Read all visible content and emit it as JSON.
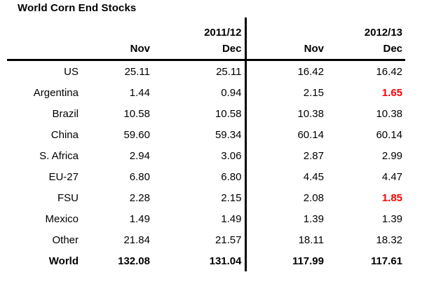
{
  "title": "World Corn End Stocks",
  "highlight_color": "#ff0000",
  "chart_data": {
    "type": "table",
    "title": "World Corn End Stocks",
    "col_groups": [
      {
        "label": "2011/12",
        "cols": [
          "Nov",
          "Dec"
        ]
      },
      {
        "label": "2012/13",
        "cols": [
          "Nov",
          "Dec"
        ]
      }
    ],
    "rows": [
      {
        "label": "US",
        "values": [
          "25.11",
          "25.11",
          "16.42",
          "16.42"
        ]
      },
      {
        "label": "Argentina",
        "values": [
          "1.44",
          "0.94",
          "2.15",
          "1.65"
        ],
        "red_cols": [
          3
        ]
      },
      {
        "label": "Brazil",
        "values": [
          "10.58",
          "10.58",
          "10.38",
          "10.38"
        ]
      },
      {
        "label": "China",
        "values": [
          "59.60",
          "59.34",
          "60.14",
          "60.14"
        ]
      },
      {
        "label": "S. Africa",
        "values": [
          "2.94",
          "3.06",
          "2.87",
          "2.99"
        ]
      },
      {
        "label": "EU-27",
        "values": [
          "6.80",
          "6.80",
          "4.45",
          "4.47"
        ]
      },
      {
        "label": "FSU",
        "values": [
          "2.28",
          "2.15",
          "2.08",
          "1.85"
        ],
        "red_cols": [
          3
        ]
      },
      {
        "label": "Mexico",
        "values": [
          "1.49",
          "1.49",
          "1.39",
          "1.39"
        ]
      },
      {
        "label": "Other",
        "values": [
          "21.84",
          "21.57",
          "18.11",
          "18.32"
        ]
      },
      {
        "label": "World",
        "values": [
          "132.08",
          "131.04",
          "117.99",
          "117.61"
        ],
        "bold": true
      }
    ]
  }
}
